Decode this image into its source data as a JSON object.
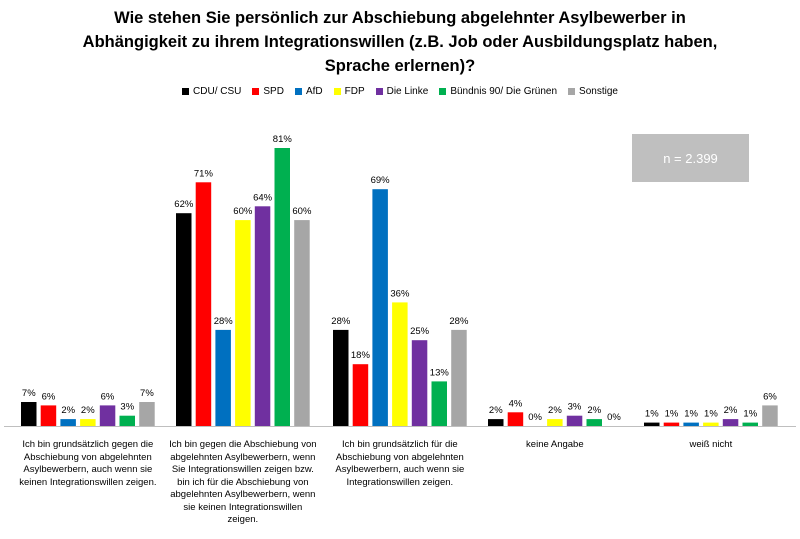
{
  "chart_data": {
    "type": "bar",
    "title_lines": [
      "Wie stehen Sie persönlich zur Abschiebung abgelehnter Asylbewerber in",
      "Abhängigkeit zu ihrem Integrationswillen (z.B. Job oder Ausbildungsplatz haben,",
      "Sprache erlernen)?"
    ],
    "categories": [
      "Ich bin grundsätzlich gegen die Abschiebung von abgelehnten Asylbewerbern, auch wenn sie keinen Integrationswillen zeigen.",
      "Ich bin gegen die Abschiebung von abgelehnten Asylbewerbern, wenn Sie Integrationswillen zeigen bzw. bin ich für die Abschiebung von abgelehnten Asylbewerbern, wenn sie keinen Integrationswillen zeigen.",
      "Ich bin grundsätzlich für die Abschiebung von abgelehnten Asylbewerbern, auch wenn sie Integrationswillen zeigen.",
      "keine Angabe",
      "weiß nicht"
    ],
    "series": [
      {
        "name": "CDU/ CSU",
        "color": "#000000",
        "values": [
          7,
          62,
          28,
          2,
          1
        ]
      },
      {
        "name": "SPD",
        "color": "#ff0000",
        "values": [
          6,
          71,
          18,
          4,
          1
        ]
      },
      {
        "name": "AfD",
        "color": "#0070c0",
        "values": [
          2,
          28,
          69,
          0,
          1
        ]
      },
      {
        "name": "FDP",
        "color": "#ffff00",
        "values": [
          2,
          60,
          36,
          2,
          1
        ]
      },
      {
        "name": "Die Linke",
        "color": "#7030a0",
        "values": [
          6,
          64,
          25,
          3,
          2
        ]
      },
      {
        "name": "Bündnis 90/ Die Grünen",
        "color": "#00b050",
        "values": [
          3,
          81,
          13,
          2,
          1
        ]
      },
      {
        "name": "Sonstige",
        "color": "#a6a6a6",
        "values": [
          7,
          60,
          28,
          0,
          6
        ]
      }
    ],
    "value_suffix": "%",
    "ylim": [
      0,
      85
    ],
    "grid": false,
    "legend_position": "top"
  },
  "annotation": {
    "sample_size": "n = 2.399"
  }
}
